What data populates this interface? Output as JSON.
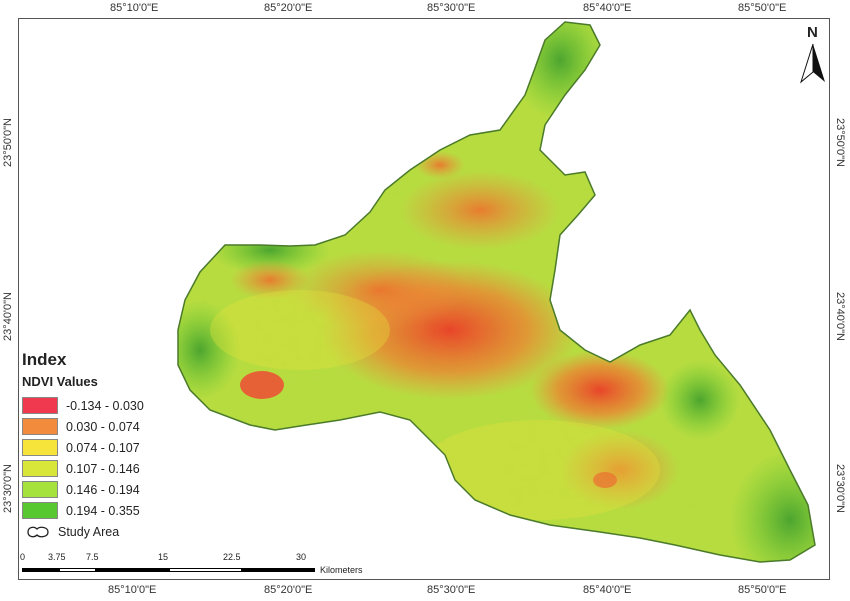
{
  "map": {
    "top_ticks": [
      "85°10'0\"E",
      "85°20'0\"E",
      "85°30'0\"E",
      "85°40'0\"E",
      "85°50'0\"E"
    ],
    "bottom_ticks": [
      "85°10'0\"E",
      "85°20'0\"E",
      "85°30'0\"E",
      "85°40'0\"E",
      "85°50'0\"E"
    ],
    "left_ticks": [
      "23°50'0\"N",
      "23°40'0\"N",
      "23°30'0\"N"
    ],
    "right_ticks": [
      "23°50'0\"N",
      "23°40'0\"N",
      "23°30'0\"N"
    ],
    "north_label": "N"
  },
  "legend": {
    "title": "Index",
    "subtitle": "NDVI Values",
    "classes": [
      {
        "label": "-0.134 - 0.030",
        "color": "#f0394f"
      },
      {
        "label": "0.030 - 0.074",
        "color": "#f28c3c"
      },
      {
        "label": "0.074 - 0.107",
        "color": "#f6e43a"
      },
      {
        "label": "0.107 - 0.146",
        "color": "#d8e63a"
      },
      {
        "label": "0.146 - 0.194",
        "color": "#a6e23c"
      },
      {
        "label": "0.194 - 0.355",
        "color": "#58c830"
      }
    ],
    "study_area": "Study Area"
  },
  "scalebar": {
    "labels": [
      "0",
      "3.75",
      "7.5",
      "15",
      "22.5",
      "30"
    ],
    "unit": "Kilometers"
  }
}
